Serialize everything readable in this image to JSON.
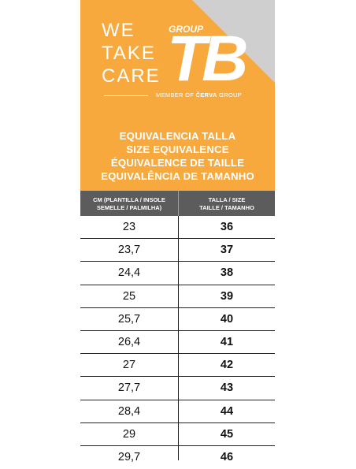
{
  "brand": {
    "slogan": [
      "WE",
      "TAKE",
      "CARE"
    ],
    "logo_group": "GROUP",
    "logo_text": "TB",
    "member_prefix": "MEMBER OF",
    "member_company": "ČERVA",
    "member_suffix": "GROUP",
    "colors": {
      "header_orange": "#f7a93e",
      "corner_gray": "#cfcfcf",
      "table_header": "#5c5c5c"
    }
  },
  "titles": [
    "EQUIVALENCIA TALLA",
    "SIZE EQUIVALENCE",
    "ÉQUIVALENCE DE TAILLE",
    "EQUIVALÊNCIA DE TAMANHO"
  ],
  "table": {
    "headers": [
      {
        "line1": "CM (PLANTILLA / INSOLE",
        "line2": "SEMELLE / PALMILHA)"
      },
      {
        "line1": "TALLA / SIZE",
        "line2": "TAILLE / TAMANHO"
      }
    ],
    "rows": [
      {
        "cm": "23",
        "size": "36"
      },
      {
        "cm": "23,7",
        "size": "37"
      },
      {
        "cm": "24,4",
        "size": "38"
      },
      {
        "cm": "25",
        "size": "39"
      },
      {
        "cm": "25,7",
        "size": "40"
      },
      {
        "cm": "26,4",
        "size": "41"
      },
      {
        "cm": "27",
        "size": "42"
      },
      {
        "cm": "27,7",
        "size": "43"
      },
      {
        "cm": "28,4",
        "size": "44"
      },
      {
        "cm": "29",
        "size": "45"
      },
      {
        "cm": "29,7",
        "size": "46"
      }
    ]
  }
}
